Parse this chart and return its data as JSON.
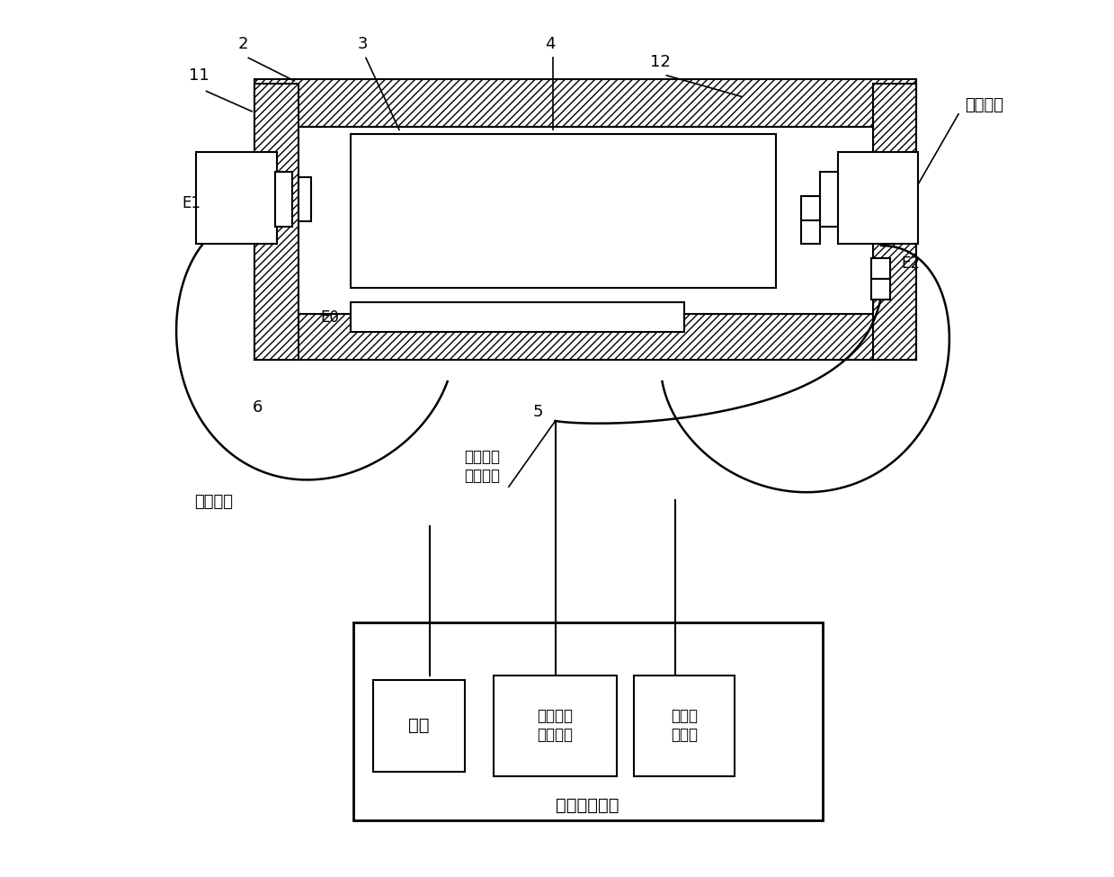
{
  "bg_color": "#ffffff",
  "line_color": "#000000",
  "text_ruchuan": "入射光纤",
  "text_chushe": "出射光纤",
  "text_wendu_xinhao": "温度信号\n输出光纤",
  "text_guangxinhao_jiediao": "光信号解调器",
  "box_guangyuan_text": "光源",
  "box_wendu_text": "温度信号\n光接收器",
  "box_guangxinhao_text": "光信号\n接收器"
}
